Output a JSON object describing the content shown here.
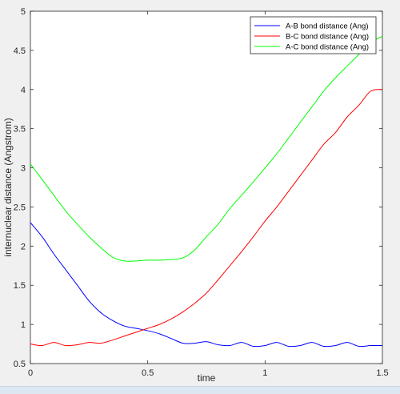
{
  "chart_data": {
    "type": "line",
    "title": "",
    "xlabel": "time",
    "ylabel": "internuclear distance (Angstrom)",
    "xlim": [
      0,
      1.5
    ],
    "ylim": [
      0.5,
      5
    ],
    "xticks": [
      "0",
      "0.5",
      "1",
      "1.5"
    ],
    "yticks": [
      "0.5",
      "1",
      "1.5",
      "2",
      "2.5",
      "3",
      "3.5",
      "4",
      "4.5",
      "5"
    ],
    "grid": false,
    "legend_position": "top-right",
    "series": [
      {
        "name": "A-B bond distance (Ang)",
        "color": "#0000ff",
        "x": [
          0,
          0.05,
          0.1,
          0.15,
          0.2,
          0.25,
          0.3,
          0.35,
          0.4,
          0.45,
          0.5,
          0.55,
          0.6,
          0.65,
          0.7,
          0.75,
          0.8,
          0.85,
          0.9,
          0.95,
          1.0,
          1.05,
          1.1,
          1.15,
          1.2,
          1.25,
          1.3,
          1.35,
          1.4,
          1.45,
          1.5
        ],
        "y": [
          2.3,
          2.12,
          1.9,
          1.7,
          1.5,
          1.3,
          1.15,
          1.05,
          0.98,
          0.95,
          0.92,
          0.88,
          0.82,
          0.76,
          0.76,
          0.78,
          0.74,
          0.73,
          0.77,
          0.72,
          0.73,
          0.77,
          0.72,
          0.73,
          0.77,
          0.72,
          0.73,
          0.77,
          0.72,
          0.73,
          0.73
        ]
      },
      {
        "name": "B-C bond distance (Ang)",
        "color": "#ff0000",
        "x": [
          0,
          0.05,
          0.1,
          0.15,
          0.2,
          0.25,
          0.3,
          0.35,
          0.4,
          0.45,
          0.5,
          0.55,
          0.6,
          0.65,
          0.7,
          0.75,
          0.8,
          0.85,
          0.9,
          0.95,
          1.0,
          1.05,
          1.1,
          1.15,
          1.2,
          1.25,
          1.3,
          1.35,
          1.4,
          1.45,
          1.5
        ],
        "y": [
          0.75,
          0.73,
          0.77,
          0.73,
          0.74,
          0.77,
          0.76,
          0.8,
          0.85,
          0.9,
          0.95,
          1.0,
          1.07,
          1.16,
          1.27,
          1.4,
          1.57,
          1.75,
          1.93,
          2.12,
          2.32,
          2.5,
          2.7,
          2.9,
          3.1,
          3.3,
          3.45,
          3.65,
          3.8,
          3.98,
          4.0
        ]
      },
      {
        "name": "A-C bond distance (Ang)",
        "color": "#00ff00",
        "x": [
          0,
          0.05,
          0.1,
          0.15,
          0.2,
          0.25,
          0.3,
          0.35,
          0.4,
          0.45,
          0.5,
          0.55,
          0.6,
          0.65,
          0.7,
          0.75,
          0.8,
          0.85,
          0.9,
          0.95,
          1.0,
          1.05,
          1.1,
          1.15,
          1.2,
          1.25,
          1.3,
          1.35,
          1.4,
          1.45,
          1.5
        ],
        "y": [
          3.05,
          2.85,
          2.65,
          2.45,
          2.28,
          2.12,
          1.98,
          1.86,
          1.81,
          1.81,
          1.82,
          1.82,
          1.83,
          1.85,
          1.95,
          2.12,
          2.28,
          2.48,
          2.65,
          2.82,
          3.0,
          3.18,
          3.38,
          3.58,
          3.78,
          3.98,
          4.15,
          4.3,
          4.45,
          4.6,
          4.68
        ]
      }
    ]
  }
}
